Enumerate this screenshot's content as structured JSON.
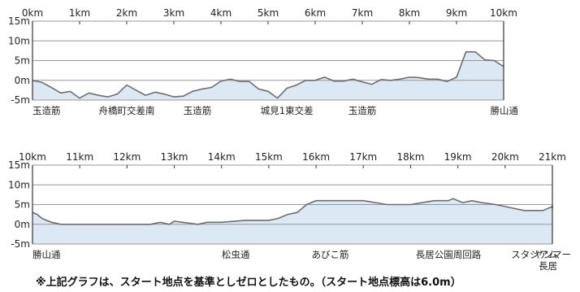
{
  "chart_data": [
    {
      "type": "area",
      "title": "",
      "xlabel": "",
      "ylabel": "",
      "xlim": [
        0,
        10
      ],
      "ylim": [
        -5,
        15
      ],
      "x_ticks": [
        "0km",
        "1km",
        "2km",
        "3km",
        "4km",
        "5km",
        "6km",
        "7km",
        "8km",
        "9km",
        "10km"
      ],
      "y_ticks": [
        "15m",
        "10m",
        "5m",
        "0m",
        "-5m"
      ],
      "grid": true,
      "series": [
        {
          "x": [
            0,
            0.2,
            0.4,
            0.6,
            0.8,
            1.0,
            1.2,
            1.4,
            1.6,
            1.8,
            2.0,
            2.2,
            2.4,
            2.6,
            2.8,
            3.0,
            3.2,
            3.4,
            3.6,
            3.8,
            4.0,
            4.2,
            4.4,
            4.6,
            4.8,
            5.0,
            5.2,
            5.4,
            5.6,
            5.8,
            6.0,
            6.2,
            6.4,
            6.6,
            6.8,
            7.0,
            7.2,
            7.4,
            7.6,
            7.8,
            8.0,
            8.2,
            8.4,
            8.6,
            8.8,
            9.0,
            9.1,
            9.2,
            9.4,
            9.6,
            9.8,
            10.0
          ],
          "y": [
            0,
            -0.5,
            -1.8,
            -3.2,
            -2.8,
            -4.5,
            -3.2,
            -3.8,
            -4.2,
            -3.5,
            -1.2,
            -2.5,
            -3.8,
            -3.0,
            -3.5,
            -4.2,
            -4.0,
            -2.8,
            -2.2,
            -1.8,
            -0.2,
            0.3,
            -0.3,
            -0.3,
            -2.2,
            -2.8,
            -4.5,
            -2.0,
            -1.2,
            0.0,
            0.0,
            0.8,
            -0.2,
            -0.2,
            0.3,
            -0.4,
            -1.0,
            0.2,
            0.0,
            0.3,
            0.8,
            0.7,
            0.3,
            0.3,
            -0.3,
            0.8,
            4.0,
            7.2,
            7.2,
            5.2,
            5.0,
            3.5
          ]
        }
      ],
      "annotations": [
        {
          "x": 0.0,
          "text": "玉造筋"
        },
        {
          "x": 2.0,
          "text": "舟橋町交差南"
        },
        {
          "x": 3.5,
          "text": "玉造筋"
        },
        {
          "x": 5.4,
          "text": "城見1東交差"
        },
        {
          "x": 7.0,
          "text": "玉造筋"
        },
        {
          "x": 10.0,
          "text": "勝山通"
        }
      ]
    },
    {
      "type": "area",
      "title": "",
      "xlabel": "",
      "ylabel": "",
      "xlim": [
        10,
        21
      ],
      "ylim": [
        -5,
        15
      ],
      "x_ticks": [
        "10km",
        "11km",
        "12km",
        "13km",
        "14km",
        "15km",
        "16km",
        "17km",
        "18km",
        "19km",
        "20km",
        "21km"
      ],
      "y_ticks": [
        "15m",
        "10m",
        "5m",
        "0m",
        "-5m"
      ],
      "grid": true,
      "series": [
        {
          "x": [
            10.0,
            10.1,
            10.2,
            10.4,
            10.6,
            11.0,
            12.0,
            12.5,
            12.7,
            12.9,
            13.0,
            13.5,
            13.7,
            14.0,
            14.5,
            15.0,
            15.2,
            15.4,
            15.6,
            15.8,
            16.0,
            16.5,
            17.0,
            17.5,
            17.8,
            18.0,
            18.5,
            18.8,
            18.9,
            19.1,
            19.3,
            19.5,
            19.8,
            20.0,
            20.2,
            20.4,
            20.6,
            20.8,
            21.0,
            21.2
          ],
          "y": [
            3.0,
            2.5,
            1.5,
            0.5,
            0.0,
            0.0,
            0.0,
            0.0,
            0.5,
            0.0,
            0.8,
            0.0,
            0.5,
            0.5,
            1.0,
            1.0,
            1.5,
            2.5,
            3.0,
            5.0,
            6.0,
            6.0,
            6.0,
            5.0,
            5.0,
            5.0,
            6.0,
            6.0,
            6.5,
            5.5,
            6.0,
            5.5,
            5.0,
            4.5,
            4.0,
            3.5,
            3.5,
            3.5,
            4.5,
            4.0
          ]
        }
      ],
      "annotations": [
        {
          "x": 10.4,
          "text": "勝山通"
        },
        {
          "x": 14.3,
          "text": "松虫通"
        },
        {
          "x": 16.3,
          "text": "あびこ筋"
        },
        {
          "x": 18.8,
          "text": "長居公園周回路"
        },
        {
          "x": 21.0,
          "text": "ヤンマー"
        },
        {
          "x": 21.0,
          "text": "スタジアム"
        },
        {
          "x": 21.0,
          "text": "長居"
        }
      ]
    }
  ],
  "footnote": "※上記グラフは、スタート地点を基準としゼロとしたもの。（スタート地点標高は6.0m）",
  "colors": {
    "fill": "#dde8f5",
    "line": "#6e6e6e",
    "grid": "#999999",
    "frame": "#333333"
  }
}
